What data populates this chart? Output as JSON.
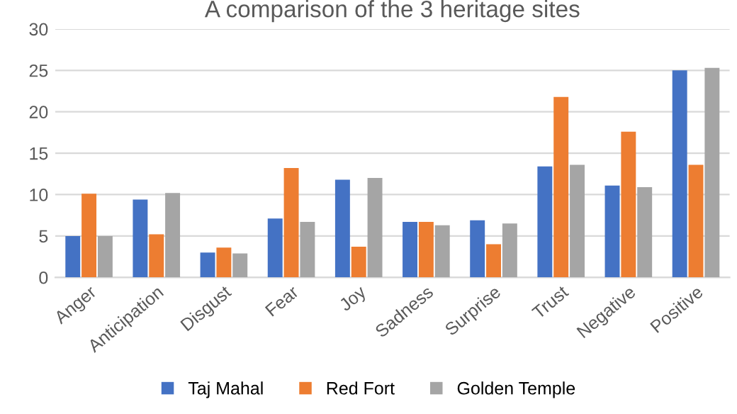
{
  "chart_data": {
    "type": "bar",
    "title": "A comparison of the 3 heritage sites",
    "categories": [
      "Anger",
      "Anticipation",
      "Disgust",
      "Fear",
      "Joy",
      "Sadness",
      "Surprise",
      "Trust",
      "Negative",
      "Positive"
    ],
    "series": [
      {
        "name": "Taj Mahal",
        "color": "#4472c4",
        "values": [
          5.0,
          9.4,
          3.0,
          7.1,
          11.8,
          6.7,
          6.9,
          13.4,
          11.1,
          25.0
        ]
      },
      {
        "name": "Red Fort",
        "color": "#ed7d31",
        "values": [
          10.1,
          5.2,
          3.6,
          13.2,
          3.7,
          6.7,
          4.0,
          21.8,
          17.6,
          13.6
        ]
      },
      {
        "name": "Golden Temple",
        "color": "#a5a5a5",
        "values": [
          5.0,
          10.2,
          2.9,
          6.7,
          12.0,
          6.3,
          6.5,
          13.6,
          10.9,
          25.3
        ]
      }
    ],
    "ylim": [
      0,
      30
    ],
    "yticks": [
      0,
      5,
      10,
      15,
      20,
      25,
      30
    ],
    "grid": "y",
    "legend": "bottom"
  }
}
